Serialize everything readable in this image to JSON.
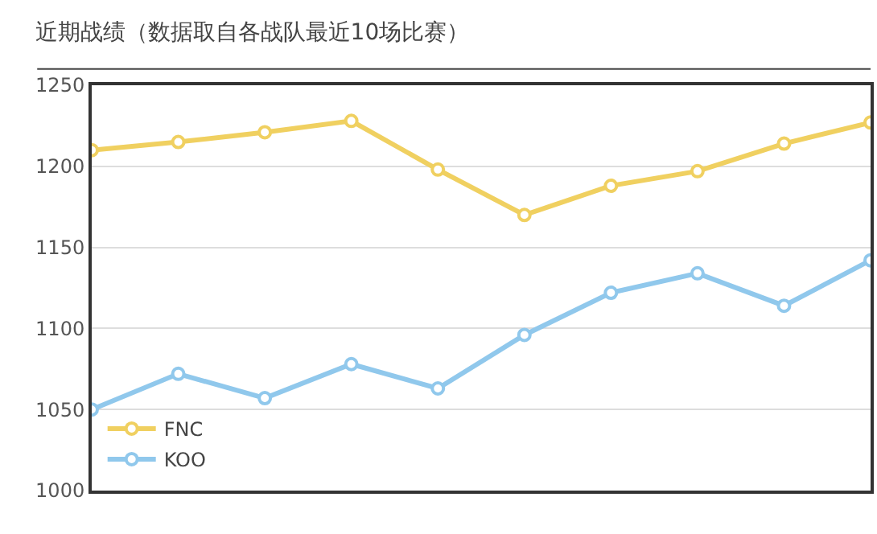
{
  "chart_data": {
    "type": "line",
    "title": "近期战绩（数据取自各战队最近10场比赛）",
    "categories": [
      null,
      null,
      null,
      null,
      null,
      null,
      null,
      null,
      null,
      null
    ],
    "series": [
      {
        "name": "FNC",
        "color": "#f0d060",
        "values": [
          1210,
          1215,
          1221,
          1228,
          1198,
          1170,
          1188,
          1197,
          1214,
          1227
        ]
      },
      {
        "name": "KOO",
        "color": "#90c8ec",
        "values": [
          1050,
          1072,
          1057,
          1078,
          1063,
          1096,
          1122,
          1134,
          1114,
          1142
        ]
      }
    ],
    "ylim": [
      1000,
      1250
    ],
    "yticks": [
      1000,
      1050,
      1100,
      1150,
      1200,
      1250
    ],
    "grid": "y",
    "legend": "bottom left",
    "marker": "circle",
    "line_style": "solid"
  }
}
